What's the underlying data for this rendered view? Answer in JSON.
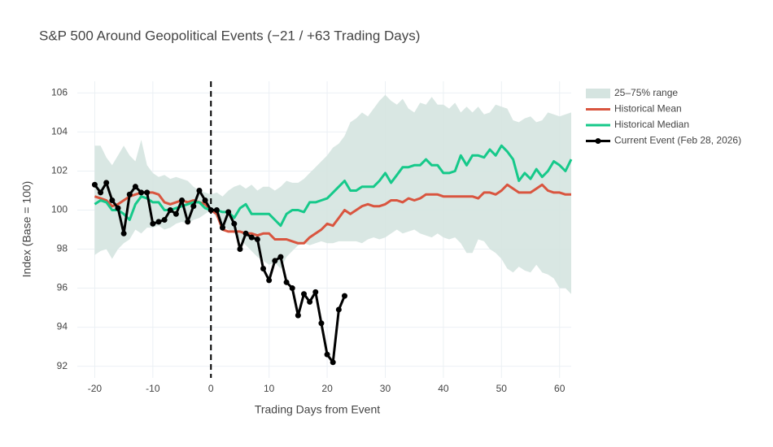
{
  "chart_data": {
    "type": "line",
    "title": "S&P 500 Around Geopolitical Events (−21 / +63 Trading Days)",
    "x_label": "Trading Days from Event",
    "y_label": "Index (Base = 100)",
    "xlim": [
      -23,
      62
    ],
    "ylim": [
      91.4,
      106.6
    ],
    "xticks": [
      -20,
      -10,
      0,
      10,
      20,
      30,
      40,
      50,
      60
    ],
    "yticks": [
      92,
      94,
      96,
      98,
      100,
      102,
      104,
      106
    ],
    "grid": true,
    "legend": "right",
    "vline_x": 0,
    "x": [
      -20,
      -19,
      -18,
      -17,
      -16,
      -15,
      -14,
      -13,
      -12,
      -11,
      -10,
      -9,
      -8,
      -7,
      -6,
      -5,
      -4,
      -3,
      -2,
      -1,
      0,
      1,
      2,
      3,
      4,
      5,
      6,
      7,
      8,
      9,
      10,
      11,
      12,
      13,
      14,
      15,
      16,
      17,
      18,
      19,
      20,
      21,
      22,
      23,
      24,
      25,
      26,
      27,
      28,
      29,
      30,
      31,
      32,
      33,
      34,
      35,
      36,
      37,
      38,
      39,
      40,
      41,
      42,
      43,
      44,
      45,
      46,
      47,
      48,
      49,
      50,
      51,
      52,
      53,
      54,
      55,
      56,
      57,
      58,
      59,
      60,
      61,
      62
    ],
    "series": [
      {
        "name": "25–75% range",
        "type": "band",
        "color": "#d5e4e0",
        "upper": [
          103.3,
          103.3,
          102.7,
          102.3,
          102.8,
          103.3,
          102.8,
          102.5,
          103.6,
          102.3,
          101.9,
          101.7,
          101.8,
          101.6,
          101.7,
          101.6,
          101.5,
          101.2,
          101.0,
          100.9,
          100.8,
          100.9,
          100.7,
          101.0,
          101.2,
          101.3,
          101.1,
          101.3,
          101.0,
          101.2,
          101.2,
          101.0,
          101.2,
          101.5,
          101.4,
          101.4,
          101.6,
          101.9,
          102.2,
          102.5,
          102.8,
          103.2,
          103.4,
          103.8,
          104.5,
          104.7,
          105.0,
          104.8,
          105.2,
          105.6,
          105.9,
          105.6,
          105.4,
          105.7,
          105.2,
          105.0,
          105.5,
          105.4,
          105.8,
          105.4,
          105.4,
          105.2,
          105.5,
          105.0,
          105.3,
          105.0,
          105.3,
          104.9,
          105.0,
          105.4,
          105.3,
          105.2,
          104.6,
          104.5,
          104.7,
          104.8,
          104.5,
          104.6,
          105.0,
          104.9,
          104.8,
          104.9,
          105.0
        ],
        "lower": [
          97.7,
          97.9,
          98.0,
          97.5,
          98.0,
          98.3,
          98.5,
          99.0,
          98.8,
          99.1,
          99.1,
          99.2,
          99.0,
          99.1,
          99.3,
          99.4,
          99.3,
          99.5,
          99.6,
          99.8,
          100.0,
          99.6,
          99.2,
          99.0,
          98.8,
          98.5,
          98.2,
          97.9,
          97.6,
          97.4,
          97.2,
          97.3,
          97.0,
          97.6,
          97.9,
          98.2,
          98.3,
          98.2,
          98.3,
          98.4,
          98.3,
          98.3,
          98.4,
          98.4,
          98.4,
          98.4,
          98.3,
          98.5,
          98.6,
          98.5,
          98.6,
          98.8,
          99.0,
          98.8,
          98.9,
          99.0,
          98.8,
          98.7,
          98.6,
          98.8,
          98.6,
          98.5,
          98.6,
          98.3,
          97.8,
          97.8,
          98.5,
          98.4,
          98.0,
          97.8,
          97.5,
          97.0,
          96.8,
          97.1,
          96.9,
          96.8,
          97.2,
          96.8,
          96.7,
          96.5,
          96.0,
          96.0,
          95.7
        ]
      },
      {
        "name": "Historical Mean",
        "color": "#d9553f",
        "values": [
          100.7,
          100.6,
          100.5,
          100.2,
          100.3,
          100.5,
          100.7,
          100.8,
          100.9,
          100.9,
          100.9,
          100.8,
          100.4,
          100.3,
          100.4,
          100.5,
          100.4,
          100.5,
          100.4,
          100.3,
          100.0,
          99.8,
          99.0,
          98.9,
          98.9,
          98.9,
          98.8,
          98.8,
          98.7,
          98.8,
          98.8,
          98.5,
          98.5,
          98.5,
          98.4,
          98.3,
          98.3,
          98.6,
          98.8,
          99.0,
          99.3,
          99.2,
          99.6,
          100.0,
          99.8,
          100.0,
          100.2,
          100.3,
          100.2,
          100.2,
          100.3,
          100.5,
          100.5,
          100.4,
          100.6,
          100.5,
          100.6,
          100.8,
          100.8,
          100.8,
          100.7,
          100.7,
          100.7,
          100.7,
          100.7,
          100.7,
          100.6,
          100.9,
          100.9,
          100.8,
          101.0,
          101.3,
          101.1,
          100.9,
          100.9,
          100.9,
          101.1,
          101.3,
          101.0,
          100.9,
          100.9,
          100.8,
          100.8
        ]
      },
      {
        "name": "Historical Median",
        "color": "#16c98a",
        "values": [
          100.3,
          100.5,
          100.4,
          100.0,
          100.0,
          99.8,
          99.5,
          100.3,
          100.7,
          100.6,
          100.4,
          100.4,
          100.0,
          100.0,
          100.1,
          100.2,
          100.3,
          100.4,
          100.4,
          100.1,
          100.0,
          100.0,
          99.9,
          99.9,
          99.6,
          100.1,
          100.3,
          99.8,
          99.8,
          99.8,
          99.8,
          99.5,
          99.2,
          99.8,
          100.0,
          100.0,
          99.9,
          100.4,
          100.4,
          100.5,
          100.6,
          100.9,
          101.2,
          101.5,
          101.0,
          101.0,
          101.2,
          101.2,
          101.2,
          101.5,
          101.9,
          101.4,
          101.8,
          102.2,
          102.2,
          102.3,
          102.3,
          102.6,
          102.3,
          102.3,
          101.9,
          101.9,
          102.0,
          102.8,
          102.3,
          102.8,
          102.8,
          102.7,
          103.1,
          102.8,
          103.3,
          103.0,
          102.6,
          101.5,
          101.9,
          101.6,
          102.1,
          101.7,
          102.0,
          102.5,
          102.3,
          102.0,
          102.6
        ]
      },
      {
        "name": "Current Event (Feb 28, 2026)",
        "color": "#000000",
        "markers": true,
        "x": [
          -20,
          -19,
          -18,
          -17,
          -16,
          -15,
          -14,
          -13,
          -12,
          -11,
          -10,
          -9,
          -8,
          -7,
          -6,
          -5,
          -4,
          -3,
          -2,
          -1,
          0,
          1,
          2,
          3,
          4,
          5,
          6,
          7,
          8,
          9,
          10,
          11,
          12,
          13,
          14,
          15,
          16,
          17,
          18,
          19,
          20,
          21,
          22,
          23
        ],
        "values": [
          101.3,
          100.9,
          101.4,
          100.5,
          100.1,
          98.8,
          100.8,
          101.2,
          100.9,
          100.9,
          99.3,
          99.4,
          99.5,
          100.0,
          99.8,
          100.5,
          99.4,
          100.2,
          101.0,
          100.5,
          100.0,
          100.0,
          99.1,
          99.9,
          99.3,
          98.0,
          98.8,
          98.6,
          98.5,
          97.0,
          96.4,
          97.4,
          97.6,
          96.3,
          96.0,
          94.6,
          95.7,
          95.3,
          95.8,
          94.2,
          92.6,
          92.2,
          94.9,
          95.6
        ]
      }
    ]
  }
}
